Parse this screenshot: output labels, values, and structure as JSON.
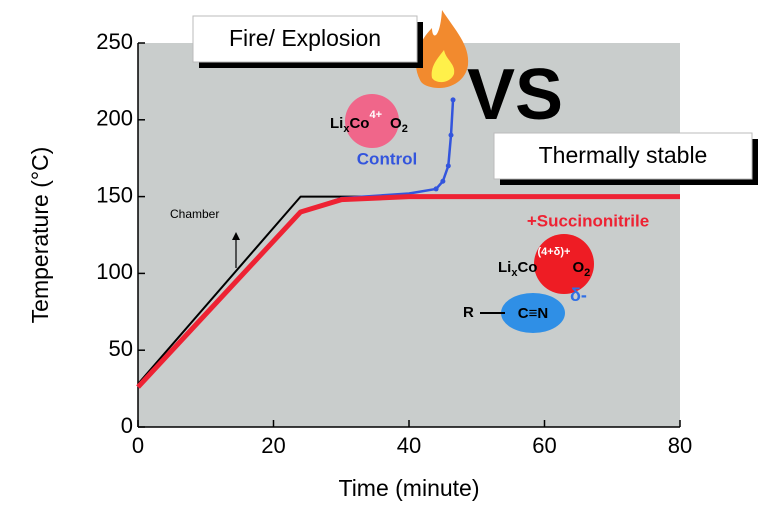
{
  "chart_data": {
    "type": "line",
    "x_label": "Time (minute)",
    "y_label": "Temperature (°C)",
    "xlim": [
      0,
      80
    ],
    "ylim": [
      0,
      250
    ],
    "xticks": [
      0,
      20,
      40,
      60,
      80
    ],
    "yticks": [
      0,
      50,
      100,
      150,
      200,
      250
    ],
    "series": [
      {
        "name": "Chamber",
        "color": "#000000",
        "x": [
          0,
          24,
          80
        ],
        "values": [
          28,
          150,
          150
        ]
      },
      {
        "name": "Control",
        "color": "#3355dd",
        "x": [
          0,
          24,
          30,
          40,
          44,
          45,
          45.8,
          46.2,
          46.5
        ],
        "values": [
          26,
          140,
          149,
          152,
          155,
          160,
          170,
          190,
          213
        ]
      },
      {
        "name": "+Succinonitrile",
        "color": "#ee2233",
        "x": [
          0,
          24,
          30,
          40,
          80
        ],
        "values": [
          26,
          140,
          148,
          150,
          150
        ]
      }
    ],
    "annotations": {
      "fire": "Fire/ Explosion",
      "vs": "VS",
      "stable": "Thermally stable",
      "formula_control": {
        "li": "Li",
        "x": "x",
        "co": "Co",
        "charge": "4+",
        "o": "O",
        "two": "2"
      },
      "formula_sn": {
        "li": "Li",
        "x": "x",
        "co": "Co",
        "charge": "(4+δ)+",
        "o": "O",
        "two": "2"
      },
      "nitrile": {
        "r": "R",
        "cn": "C≡N",
        "delta": "δ-"
      }
    }
  }
}
